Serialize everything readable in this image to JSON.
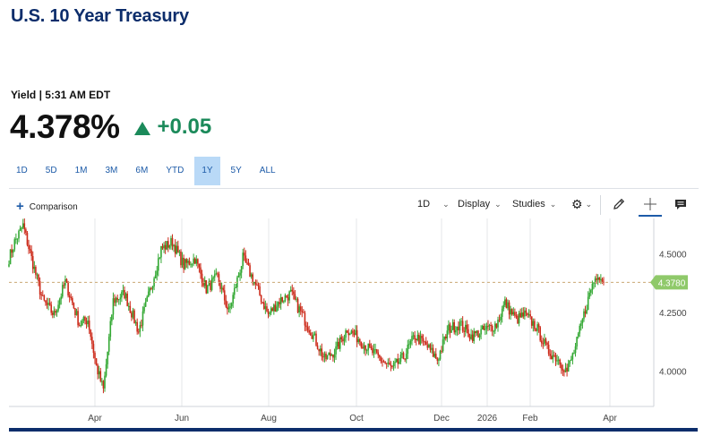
{
  "header": {
    "title": "U.S. 10 Year Treasury",
    "meta": "Yield | 5:31 AM EDT",
    "price": "4.378%",
    "change": "+0.05"
  },
  "ranges": [
    {
      "label": "1D",
      "active": false
    },
    {
      "label": "5D",
      "active": false
    },
    {
      "label": "1M",
      "active": false
    },
    {
      "label": "3M",
      "active": false
    },
    {
      "label": "6M",
      "active": false
    },
    {
      "label": "YTD",
      "active": false
    },
    {
      "label": "1Y",
      "active": true
    },
    {
      "label": "5Y",
      "active": false
    },
    {
      "label": "ALL",
      "active": false
    }
  ],
  "toolbar": {
    "comparison": "Comparison",
    "interval": "1D",
    "display": "Display",
    "studies": "Studies",
    "icons": [
      "gear-icon",
      "pencil-icon",
      "crosshair-icon",
      "comment-icon"
    ]
  },
  "colors": {
    "up": "#33a833",
    "down": "#cc2a1a",
    "accent": "#1d5ba8",
    "title": "#0c2d6b",
    "current_price_tag": "#8fc96a"
  },
  "chart_data": {
    "type": "candlestick",
    "x_tick_labels": [
      "Apr",
      "Jun",
      "Aug",
      "Oct",
      "Dec",
      "2026",
      "Feb",
      "Apr"
    ],
    "y_tick_labels": [
      "4.5000",
      "4.2500",
      "4.0000"
    ],
    "ylim": [
      3.85,
      4.65
    ],
    "current_value_label": "4.3780",
    "current_value": 4.378,
    "grid": "vertical",
    "anchors": [
      [
        0,
        4.48
      ],
      [
        4,
        4.55
      ],
      [
        10,
        4.62
      ],
      [
        16,
        4.48
      ],
      [
        24,
        4.3
      ],
      [
        32,
        4.24
      ],
      [
        40,
        4.38
      ],
      [
        50,
        4.2
      ],
      [
        56,
        4.22
      ],
      [
        62,
        4.02
      ],
      [
        67,
        3.92
      ],
      [
        74,
        4.3
      ],
      [
        82,
        4.33
      ],
      [
        92,
        4.17
      ],
      [
        100,
        4.34
      ],
      [
        108,
        4.52
      ],
      [
        116,
        4.55
      ],
      [
        124,
        4.45
      ],
      [
        132,
        4.48
      ],
      [
        140,
        4.35
      ],
      [
        148,
        4.4
      ],
      [
        156,
        4.25
      ],
      [
        166,
        4.48
      ],
      [
        174,
        4.38
      ],
      [
        184,
        4.24
      ],
      [
        192,
        4.3
      ],
      [
        200,
        4.33
      ],
      [
        208,
        4.24
      ],
      [
        216,
        4.15
      ],
      [
        224,
        4.05
      ],
      [
        232,
        4.09
      ],
      [
        240,
        4.18
      ],
      [
        248,
        4.14
      ],
      [
        256,
        4.09
      ],
      [
        264,
        4.05
      ],
      [
        272,
        4.01
      ],
      [
        280,
        4.06
      ],
      [
        288,
        4.15
      ],
      [
        296,
        4.11
      ],
      [
        304,
        4.05
      ],
      [
        312,
        4.18
      ],
      [
        320,
        4.2
      ],
      [
        328,
        4.15
      ],
      [
        336,
        4.17
      ],
      [
        346,
        4.2
      ],
      [
        352,
        4.29
      ],
      [
        360,
        4.22
      ],
      [
        366,
        4.24
      ],
      [
        374,
        4.19
      ],
      [
        382,
        4.09
      ],
      [
        390,
        4.05
      ],
      [
        396,
        4.0
      ],
      [
        402,
        4.1
      ],
      [
        408,
        4.24
      ],
      [
        414,
        4.37
      ],
      [
        418,
        4.42
      ],
      [
        422,
        4.378
      ]
    ]
  }
}
